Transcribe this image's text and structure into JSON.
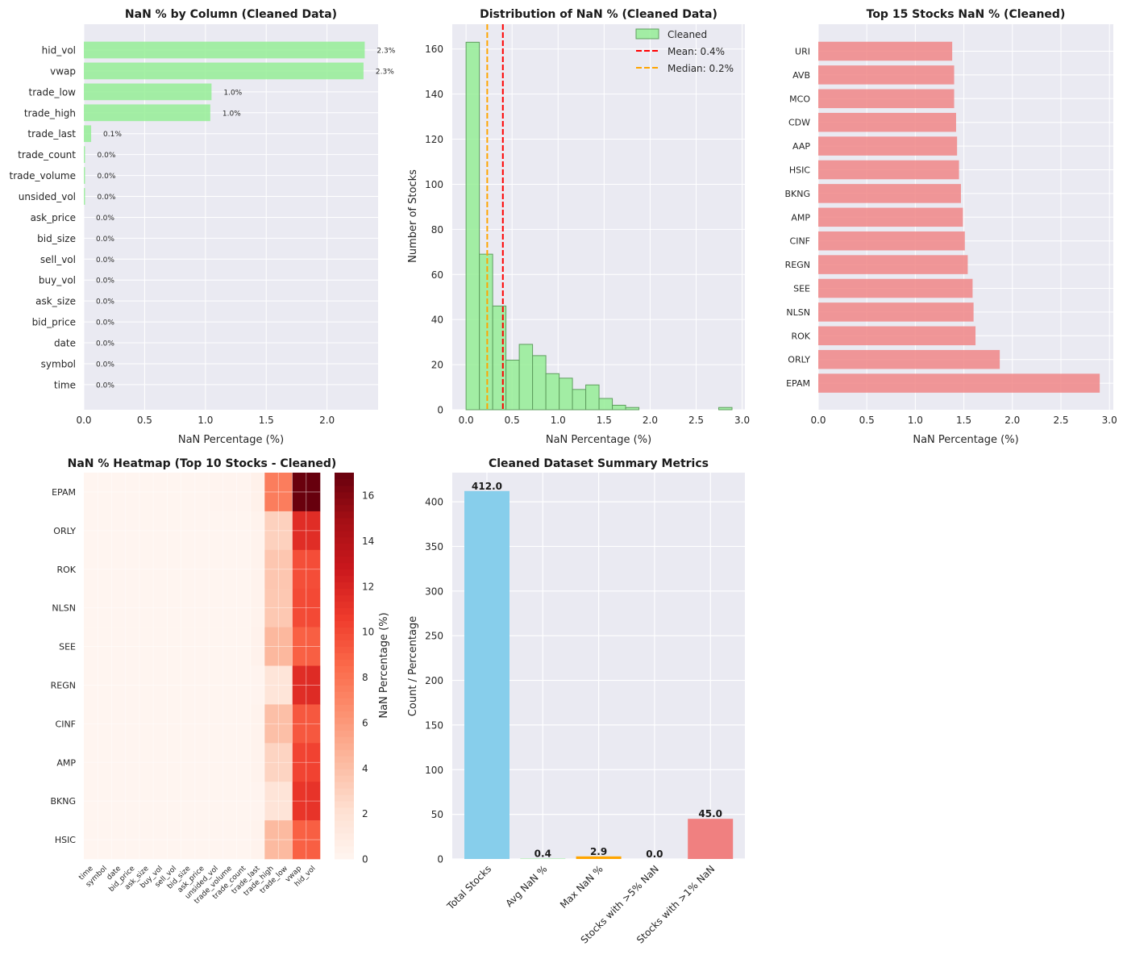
{
  "colors": {
    "panel_bg": "#EAEAF2",
    "grid": "#FFFFFF",
    "green": "#90EE90",
    "green_edge": "#5F9E5F",
    "salmon": "#F08080",
    "skyblue": "#87CEEB",
    "orange": "#FFA500",
    "red": "#FF0000"
  },
  "chart_data": [
    {
      "type": "bar",
      "orientation": "horizontal",
      "title": "NaN % by Column (Cleaned Data)",
      "xlabel": "NaN Percentage (%)",
      "xlim": [
        0,
        2.42
      ],
      "xticks": [
        0,
        0.5,
        1,
        1.5,
        2
      ],
      "xtick_labels": [
        "0.0",
        "0.5",
        "1.0",
        "1.5",
        "2.0"
      ],
      "categories": [
        "hid_vol",
        "vwap",
        "trade_low",
        "trade_high",
        "trade_last",
        "trade_count",
        "trade_volume",
        "unsided_vol",
        "ask_price",
        "bid_size",
        "sell_vol",
        "buy_vol",
        "ask_size",
        "bid_price",
        "date",
        "symbol",
        "time"
      ],
      "values": [
        2.31,
        2.3,
        1.05,
        1.04,
        0.06,
        0.01,
        0.01,
        0.01,
        0.0,
        0.0,
        0.0,
        0.0,
        0.0,
        0.0,
        0.0,
        0.0,
        0.0
      ],
      "value_labels": [
        "2.3%",
        "2.3%",
        "1.0%",
        "1.0%",
        "0.1%",
        "0.0%",
        "0.0%",
        "0.0%",
        "0.0%",
        "0.0%",
        "0.0%",
        "0.0%",
        "0.0%",
        "0.0%",
        "0.0%",
        "0.0%",
        "0.0%"
      ]
    },
    {
      "type": "histogram",
      "title": "Distribution of NaN % (Cleaned Data)",
      "xlabel": "NaN Percentage (%)",
      "ylabel": "Number of Stocks",
      "xlim": [
        -0.15,
        3.03
      ],
      "ylim": [
        0,
        171
      ],
      "xticks": [
        0,
        0.5,
        1,
        1.5,
        2,
        2.5,
        3
      ],
      "xtick_labels": [
        "0.0",
        "0.5",
        "1.0",
        "1.5",
        "2.0",
        "2.5",
        "3.0"
      ],
      "yticks": [
        0,
        20,
        40,
        60,
        80,
        100,
        120,
        140,
        160
      ],
      "bin_start": 0.0,
      "bin_width": 0.1445,
      "counts": [
        163,
        69,
        46,
        22,
        29,
        24,
        16,
        14,
        9,
        11,
        5,
        2,
        1,
        0,
        0,
        0,
        0,
        0,
        0,
        1
      ],
      "mean": 0.4,
      "median": 0.23,
      "legend": {
        "series": "Cleaned",
        "mean": "Mean: 0.4%",
        "median": "Median: 0.2%",
        "position": "top-right"
      }
    },
    {
      "type": "bar",
      "orientation": "horizontal",
      "title": "Top 15 Stocks NaN % (Cleaned)",
      "xlabel": "NaN Percentage (%)",
      "xlim": [
        0,
        3.04
      ],
      "xticks": [
        0,
        0.5,
        1,
        1.5,
        2,
        2.5,
        3
      ],
      "xtick_labels": [
        "0.0",
        "0.5",
        "1.0",
        "1.5",
        "2.0",
        "2.5",
        "3.0"
      ],
      "categories": [
        "URI",
        "AVB",
        "MCO",
        "CDW",
        "AAP",
        "HSIC",
        "BKNG",
        "AMP",
        "CINF",
        "REGN",
        "SEE",
        "NLSN",
        "ROK",
        "ORLY",
        "EPAM"
      ],
      "values": [
        1.38,
        1.4,
        1.4,
        1.42,
        1.43,
        1.45,
        1.47,
        1.49,
        1.51,
        1.54,
        1.59,
        1.6,
        1.62,
        1.87,
        2.9
      ]
    },
    {
      "type": "heatmap",
      "title": "NaN % Heatmap (Top 10 Stocks - Cleaned)",
      "rows": [
        "EPAM",
        "ORLY",
        "ROK",
        "NLSN",
        "SEE",
        "REGN",
        "CINF",
        "AMP",
        "BKNG",
        "HSIC"
      ],
      "columns": [
        "time",
        "symbol",
        "date",
        "bid_price",
        "ask_size",
        "buy_vol",
        "sell_vol",
        "bid_size",
        "ask_price",
        "unsided_vol",
        "trade_volume",
        "trade_count",
        "trade_last",
        "trade_high",
        "trade_low",
        "vwap",
        "hid_vol"
      ],
      "values": [
        [
          0,
          0,
          0,
          0,
          0,
          0,
          0,
          0,
          0,
          0.1,
          0.1,
          0.1,
          0.4,
          7.5,
          7.5,
          16.9,
          17.0
        ],
        [
          0,
          0,
          0,
          0,
          0,
          0,
          0,
          0,
          0,
          0,
          0,
          0,
          0.2,
          3.0,
          3.0,
          11.5,
          11.5
        ],
        [
          0,
          0,
          0,
          0,
          0,
          0,
          0,
          0,
          0,
          0,
          0,
          0,
          0.2,
          3.6,
          3.6,
          9.7,
          9.8
        ],
        [
          0,
          0,
          0,
          0,
          0,
          0,
          0,
          0,
          0,
          0,
          0,
          0,
          0.2,
          3.5,
          3.5,
          9.9,
          10.0
        ],
        [
          0,
          0,
          0,
          0,
          0,
          0,
          0,
          0,
          0,
          0,
          0,
          0,
          0.3,
          4.4,
          4.4,
          8.9,
          9.0
        ],
        [
          0,
          0,
          0,
          0,
          0,
          0,
          0,
          0,
          0,
          0,
          0,
          0,
          0.1,
          1.6,
          1.6,
          11.5,
          11.6
        ],
        [
          0,
          0,
          0,
          0,
          0,
          0,
          0,
          0,
          0,
          0,
          0,
          0,
          0.2,
          4.0,
          4.0,
          9.3,
          9.3
        ],
        [
          0,
          0,
          0,
          0,
          0,
          0,
          0,
          0,
          0,
          0,
          0,
          0,
          0.2,
          2.8,
          2.8,
          10.2,
          10.3
        ],
        [
          0,
          0,
          0,
          0,
          0,
          0,
          0,
          0,
          0,
          0,
          0,
          0,
          0.1,
          1.7,
          1.7,
          11.0,
          11.1
        ],
        [
          0,
          0,
          0,
          0,
          0,
          0,
          0,
          0,
          0,
          0,
          0,
          0,
          0.2,
          4.3,
          4.3,
          8.9,
          9.0
        ]
      ],
      "colorbar": {
        "label": "NaN Percentage (%)",
        "range": [
          0,
          17.0
        ],
        "ticks": [
          0,
          2,
          4,
          6,
          8,
          10,
          12,
          14,
          16
        ],
        "colormap": "Reds"
      }
    },
    {
      "type": "bar",
      "title": "Cleaned Dataset Summary Metrics",
      "ylabel": "Count / Percentage",
      "ylim": [
        0,
        432.6
      ],
      "yticks": [
        0,
        50,
        100,
        150,
        200,
        250,
        300,
        350,
        400
      ],
      "categories": [
        "Total Stocks",
        "Avg NaN %",
        "Max NaN %",
        "Stocks with >5% NaN",
        "Stocks with >1% NaN"
      ],
      "values": [
        412.0,
        0.4,
        2.9,
        0.0,
        45.0
      ],
      "value_labels": [
        "412.0",
        "0.4",
        "2.9",
        "0.0",
        "45.0"
      ],
      "bar_colors": [
        "#87CEEB",
        "#90EE90",
        "#FFA500",
        "#FF0000",
        "#F08080"
      ]
    }
  ]
}
